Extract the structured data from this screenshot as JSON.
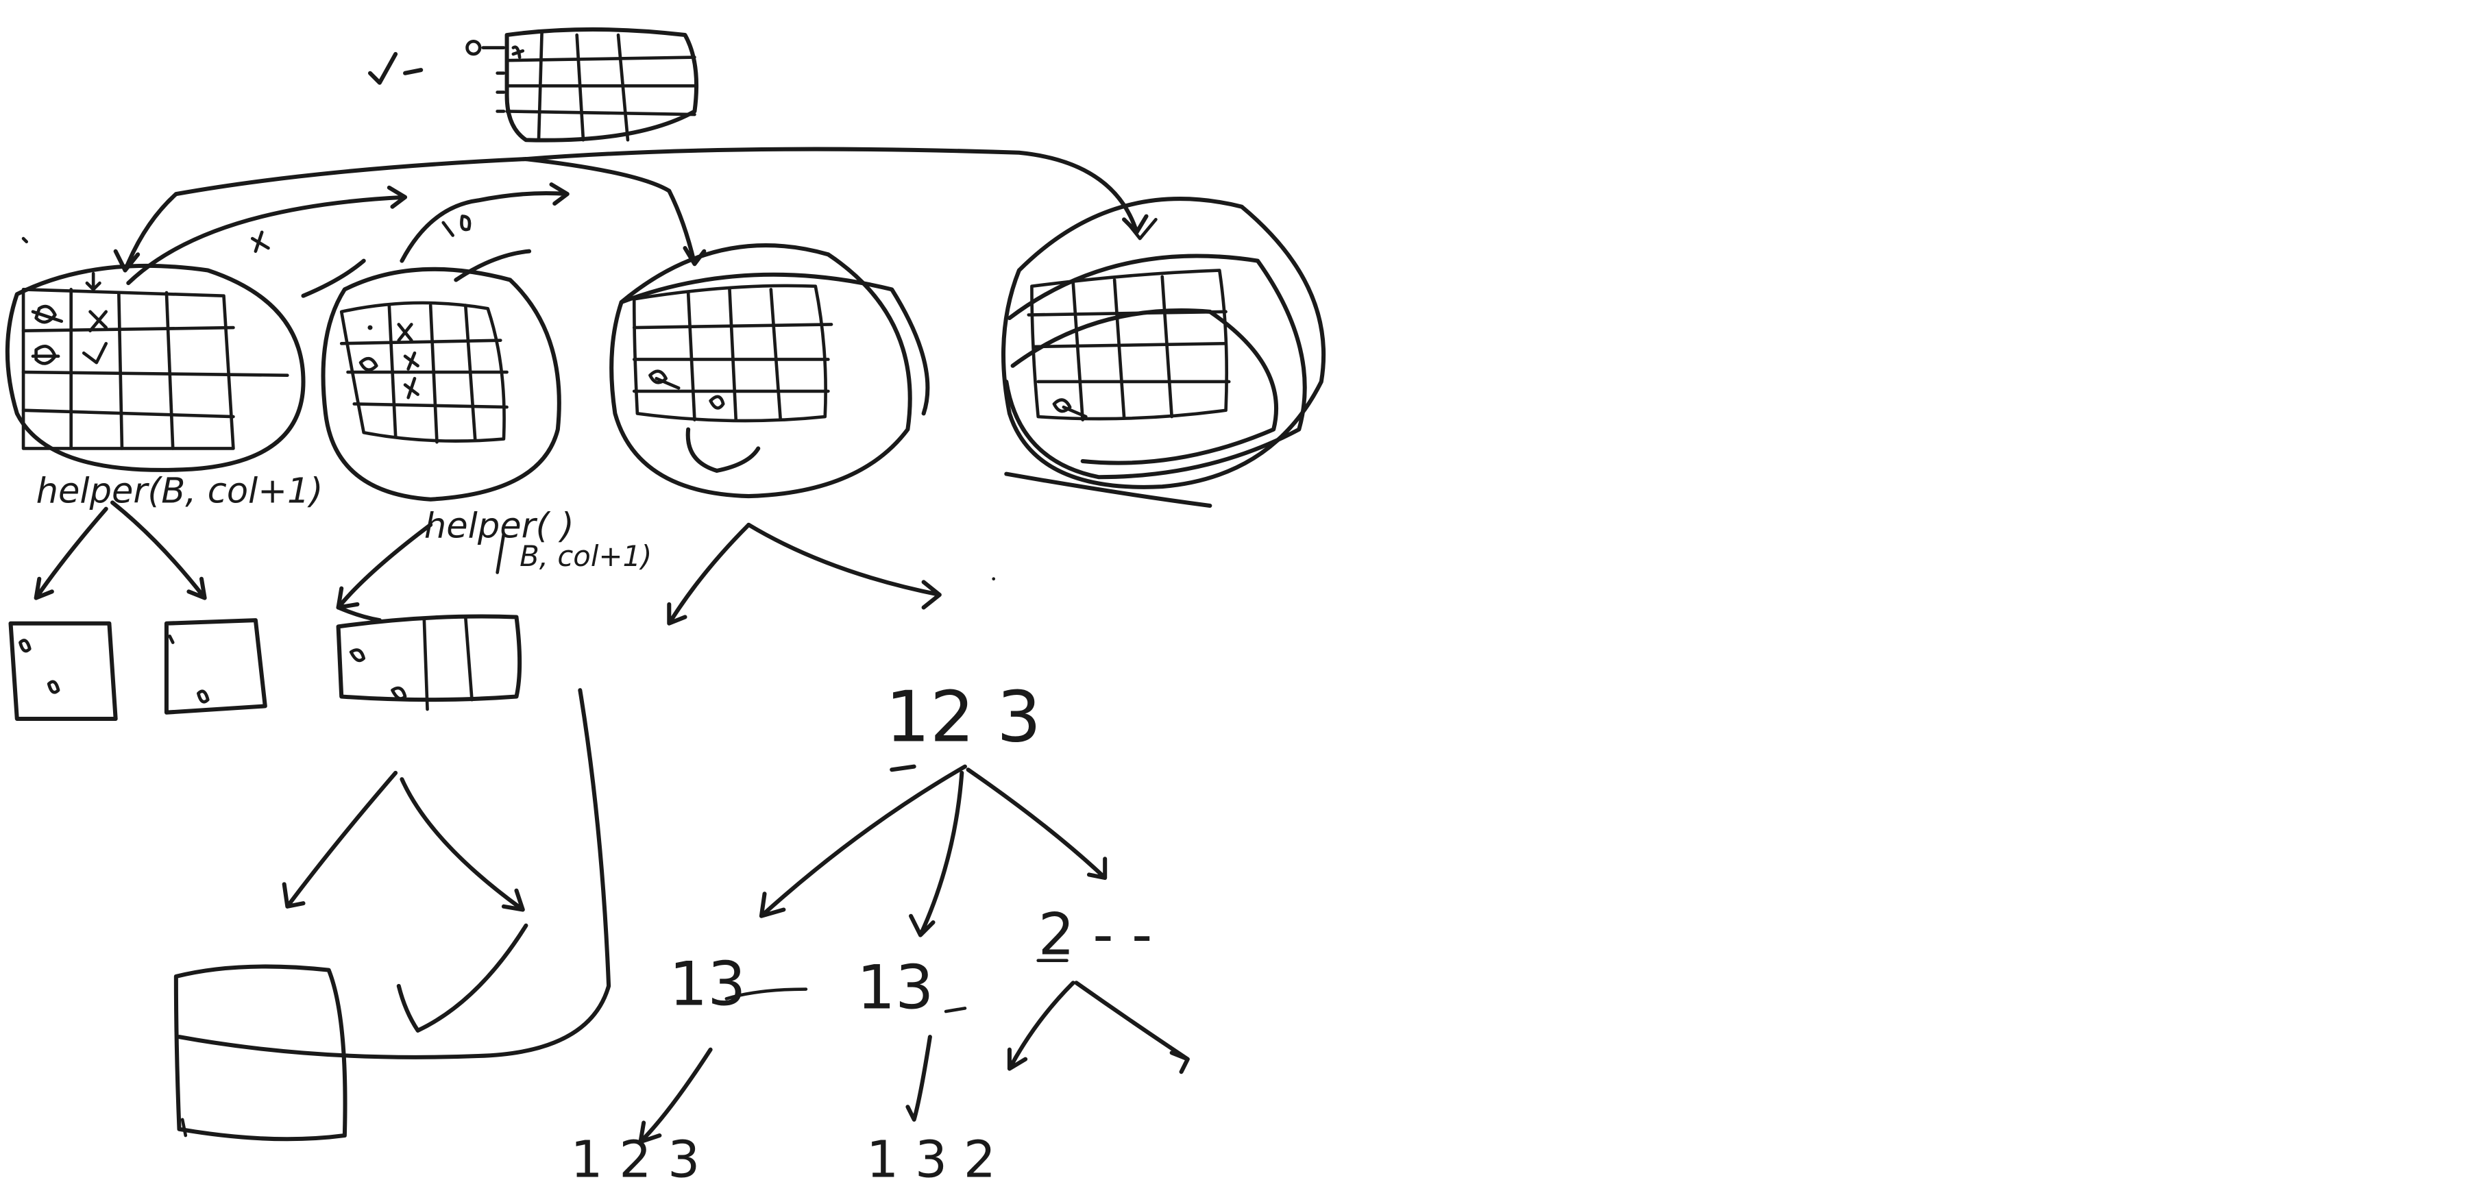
{
  "canvas": {
    "background": "#ffffff",
    "ink_color": "#1a1a1a"
  },
  "notes": {
    "helper_call_left": "helper(B, col+1)",
    "helper_call_middle_name": "helper( )",
    "helper_call_middle_args": "B, col+1)",
    "sequence_root": "12 3",
    "sequence_child_a": "13",
    "sequence_child_b": "13",
    "sequence_child_c": "2 - -",
    "sequence_leaf_a": "1 2 3",
    "sequence_leaf_b": "1 3 2"
  }
}
